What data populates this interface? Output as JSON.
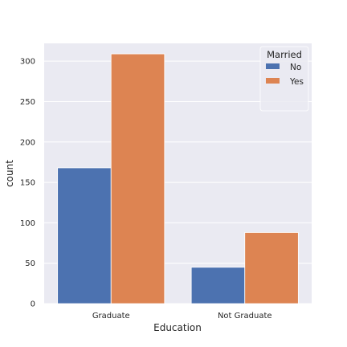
{
  "chart_data": {
    "type": "bar",
    "categories": [
      "Graduate",
      "Not Graduate"
    ],
    "series": [
      {
        "name": "No",
        "values": [
          168,
          45
        ],
        "color": "#4c72b0"
      },
      {
        "name": "Yes",
        "values": [
          309,
          88
        ],
        "color": "#dd8452"
      }
    ],
    "title": "",
    "xlabel": "Education",
    "ylabel": "count",
    "ylim": [
      0,
      322
    ],
    "yticks": [
      0,
      50,
      100,
      150,
      200,
      250,
      300
    ],
    "grid": true,
    "legend": {
      "title": "Married",
      "placement": "top-right"
    },
    "colors": {
      "background": "#eaeaf2",
      "grid": "#ffffff"
    }
  }
}
